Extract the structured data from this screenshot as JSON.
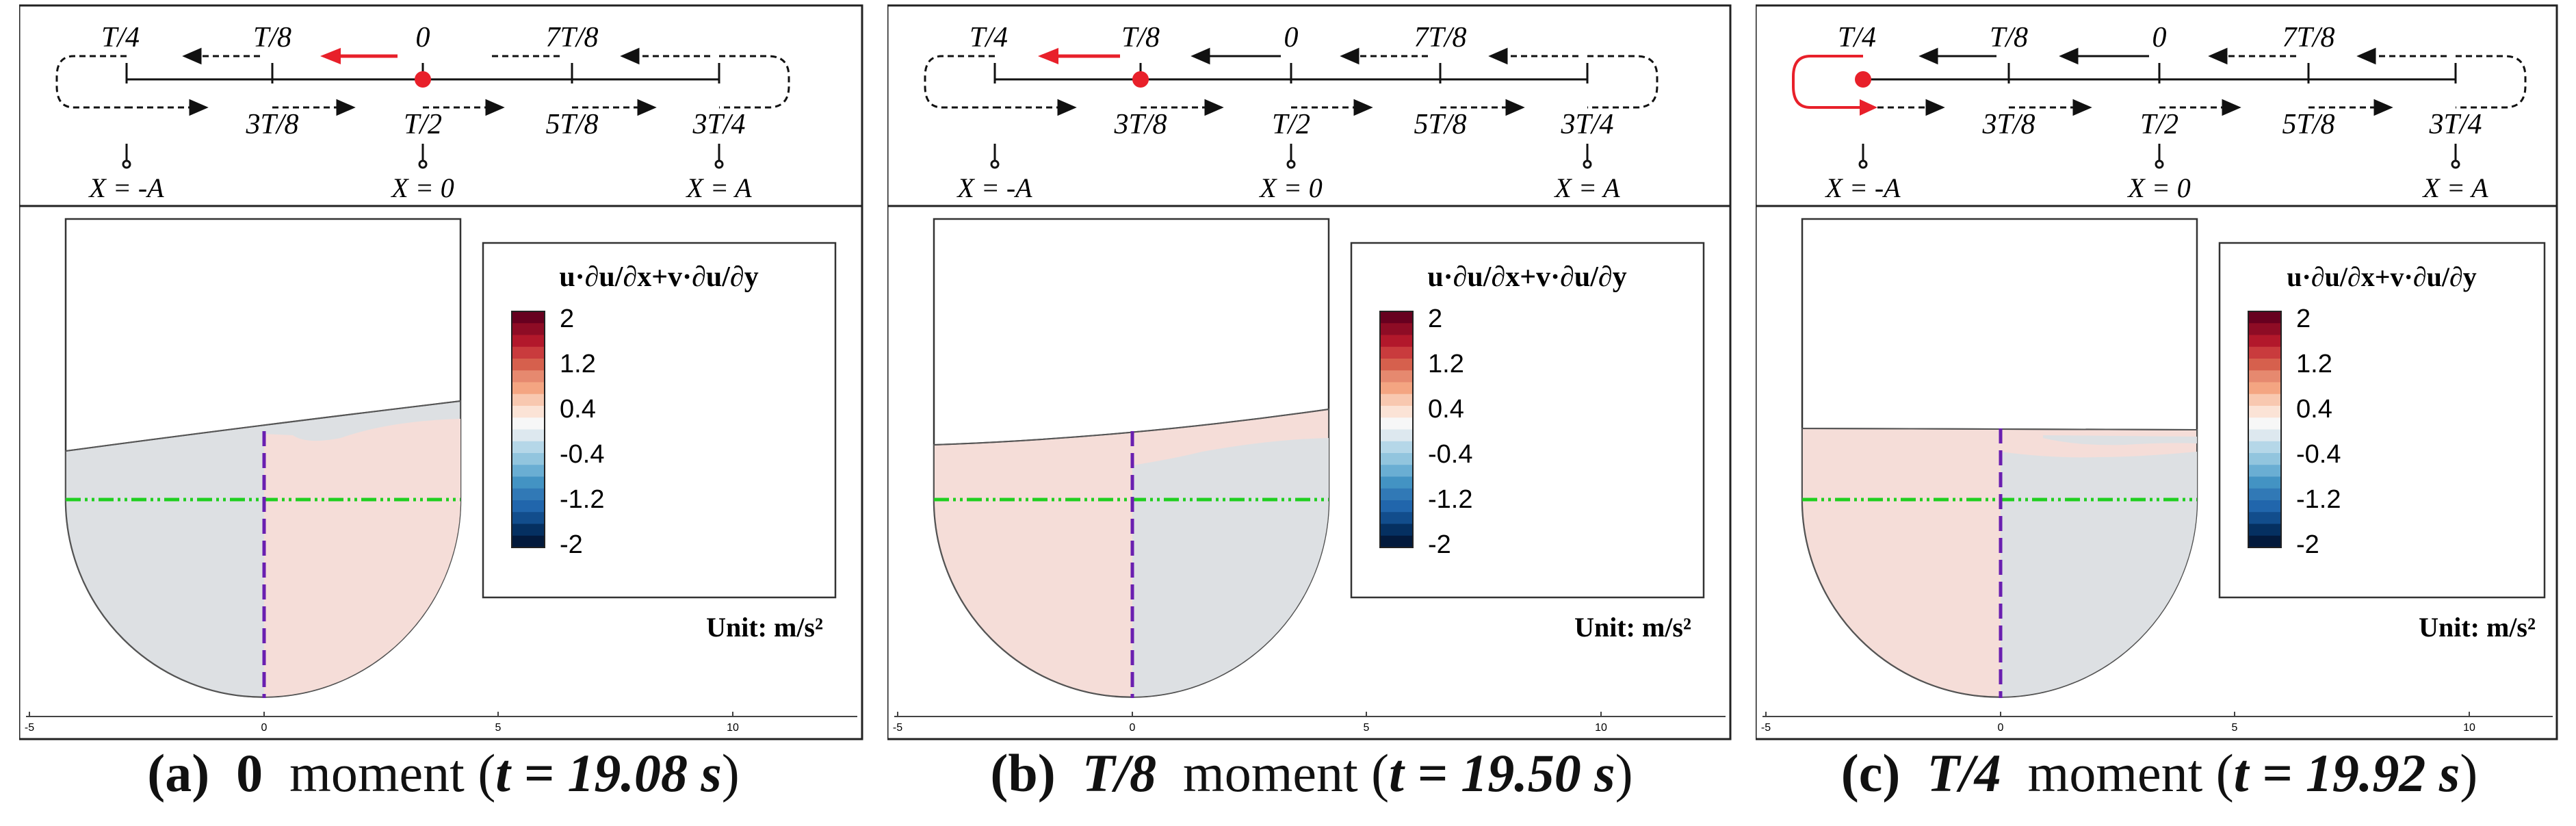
{
  "panels": [
    {
      "caption": {
        "letter": "(a)",
        "phase": "0",
        "moment": "moment",
        "eq": "t = 19.08 s"
      },
      "scheme": {
        "top": [
          "T/4",
          "T/8",
          "0",
          "7T/8"
        ],
        "bottom": [
          "3T/8",
          "T/2",
          "5T/8",
          "3T/4"
        ],
        "x_labels": [
          "X = -A",
          "X = 0",
          "X = A"
        ],
        "position": "0"
      },
      "legend": {
        "title": "u·∂u/∂x+v·∂u/∂y",
        "labels": [
          "2",
          "1.2",
          "0.4",
          "-0.4",
          "-1.2",
          "-2"
        ],
        "unit": "Unit: m/s²"
      },
      "axis": {
        "ticks": [
          "-5",
          "0",
          "5",
          "10"
        ]
      }
    },
    {
      "caption": {
        "letter": "(b)",
        "phase": "T/8",
        "moment": "moment",
        "eq": "t = 19.50 s"
      },
      "scheme": {
        "top": [
          "T/4",
          "T/8",
          "0",
          "7T/8"
        ],
        "bottom": [
          "3T/8",
          "T/2",
          "5T/8",
          "3T/4"
        ],
        "x_labels": [
          "X = -A",
          "X = 0",
          "X = A"
        ],
        "position": "T/8"
      },
      "legend": {
        "title": "u·∂u/∂x+v·∂u/∂y",
        "labels": [
          "2",
          "1.2",
          "0.4",
          "-0.4",
          "-1.2",
          "-2"
        ],
        "unit": "Unit: m/s²"
      },
      "axis": {
        "ticks": [
          "-5",
          "0",
          "5",
          "10"
        ]
      }
    },
    {
      "caption": {
        "letter": "(c)",
        "phase": "T/4",
        "moment": "moment",
        "eq": "t = 19.92 s"
      },
      "scheme": {
        "top": [
          "T/4",
          "T/8",
          "0",
          "7T/8"
        ],
        "bottom": [
          "3T/8",
          "T/2",
          "5T/8",
          "3T/4"
        ],
        "x_labels": [
          "X = -A",
          "X = 0",
          "X = A"
        ],
        "position": "T/4"
      },
      "legend": {
        "title": "u·∂u/∂x+v·∂u/∂y",
        "labels": [
          "2",
          "1.2",
          "0.4",
          "-0.4",
          "-1.2",
          "-2"
        ],
        "unit": "Unit: m/s²"
      },
      "axis": {
        "ticks": [
          "-5",
          "0",
          "5",
          "10"
        ]
      }
    }
  ],
  "colors": {
    "highlight": "#e8202a",
    "centerline_v": "#6a1fb0",
    "centerline_h": "#1fcf1f",
    "positive_fill": "#f5ddd8",
    "negative_fill": "#dde0e3",
    "colorbar": [
      "#67001f",
      "#8e0c25",
      "#b2182b",
      "#c93b3d",
      "#d6604d",
      "#e6896f",
      "#f4a582",
      "#f8c8b0",
      "#fbe3d6",
      "#f7f7f7",
      "#dde8ef",
      "#b5d7e8",
      "#92c5de",
      "#6aaed3",
      "#4393c3",
      "#3179b6",
      "#2166ac",
      "#124d8c",
      "#053061",
      "#031a3c"
    ]
  }
}
